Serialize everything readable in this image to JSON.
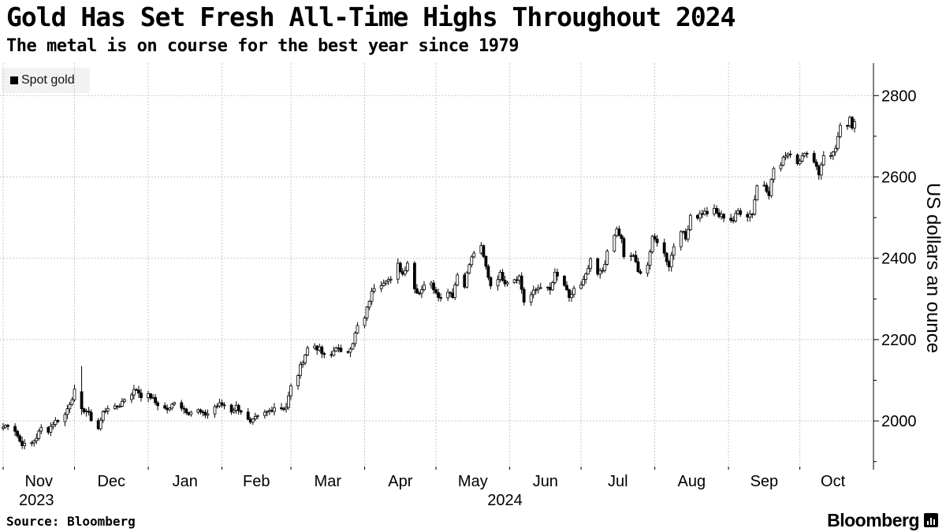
{
  "header": {
    "title": "Gold Has Set Fresh All-Time Highs Throughout 2024",
    "subtitle": "The metal is on course for the best year since 1979"
  },
  "footer": {
    "source": "Source: Bloomberg",
    "brand": "Bloomberg"
  },
  "chart_data": {
    "type": "candlestick",
    "legend": {
      "entries": [
        "Spot gold"
      ],
      "placement": "top-left"
    },
    "ylabel": "US dollars an ounce",
    "y_axis_side": "right",
    "ylim": [
      1880,
      2880
    ],
    "yticks": [
      2000,
      2200,
      2400,
      2600,
      2800
    ],
    "grid": true,
    "x_range": [
      "2023-11-01",
      "2024-10-24"
    ],
    "month_ticks": [
      {
        "label": "Nov",
        "date": "2023-11-01"
      },
      {
        "label": "Dec",
        "date": "2023-12-01"
      },
      {
        "label": "Jan",
        "date": "2024-01-01"
      },
      {
        "label": "Feb",
        "date": "2024-02-01"
      },
      {
        "label": "Mar",
        "date": "2024-03-01"
      },
      {
        "label": "Apr",
        "date": "2024-04-01"
      },
      {
        "label": "May",
        "date": "2024-05-01"
      },
      {
        "label": "Jun",
        "date": "2024-06-01"
      },
      {
        "label": "Jul",
        "date": "2024-07-01"
      },
      {
        "label": "Aug",
        "date": "2024-08-01"
      },
      {
        "label": "Sep",
        "date": "2024-09-01"
      },
      {
        "label": "Oct",
        "date": "2024-10-01"
      }
    ],
    "year_labels": [
      {
        "label": "2023",
        "date": "2023-11-15"
      },
      {
        "label": "2024",
        "date": "2024-05-30"
      }
    ],
    "candle_color_up": "#ffffff",
    "candle_color_down": "#000000",
    "close_series": [
      [
        "2023-11-01",
        1985
      ],
      [
        "2023-11-03",
        1992
      ],
      [
        "2023-11-06",
        1978
      ],
      [
        "2023-11-08",
        1950
      ],
      [
        "2023-11-10",
        1940
      ],
      [
        "2023-11-13",
        1945
      ],
      [
        "2023-11-15",
        1960
      ],
      [
        "2023-11-17",
        1982
      ],
      [
        "2023-11-20",
        1978
      ],
      [
        "2023-11-22",
        1995
      ],
      [
        "2023-11-24",
        2003
      ],
      [
        "2023-11-27",
        2015
      ],
      [
        "2023-11-29",
        2045
      ],
      [
        "2023-12-01",
        2072
      ],
      [
        "2023-12-04",
        2030
      ],
      [
        "2023-12-06",
        2025
      ],
      [
        "2023-12-08",
        2005
      ],
      [
        "2023-12-11",
        1982
      ],
      [
        "2023-12-13",
        2020
      ],
      [
        "2023-12-15",
        2035
      ],
      [
        "2023-12-18",
        2030
      ],
      [
        "2023-12-20",
        2040
      ],
      [
        "2023-12-22",
        2055
      ],
      [
        "2023-12-27",
        2078
      ],
      [
        "2023-12-29",
        2063
      ],
      [
        "2024-01-02",
        2060
      ],
      [
        "2024-01-04",
        2045
      ],
      [
        "2024-01-08",
        2030
      ],
      [
        "2024-01-10",
        2028
      ],
      [
        "2024-01-12",
        2050
      ],
      [
        "2024-01-16",
        2030
      ],
      [
        "2024-01-18",
        2022
      ],
      [
        "2024-01-22",
        2025
      ],
      [
        "2024-01-24",
        2015
      ],
      [
        "2024-01-26",
        2018
      ],
      [
        "2024-01-29",
        2035
      ],
      [
        "2024-01-31",
        2040
      ],
      [
        "2024-02-02",
        2040
      ],
      [
        "2024-02-05",
        2025
      ],
      [
        "2024-02-07",
        2035
      ],
      [
        "2024-02-09",
        2025
      ],
      [
        "2024-02-13",
        1992
      ],
      [
        "2024-02-15",
        2005
      ],
      [
        "2024-02-19",
        2018
      ],
      [
        "2024-02-21",
        2025
      ],
      [
        "2024-02-23",
        2035
      ],
      [
        "2024-02-26",
        2032
      ],
      [
        "2024-02-28",
        2035
      ],
      [
        "2024-03-01",
        2083
      ],
      [
        "2024-03-04",
        2115
      ],
      [
        "2024-03-06",
        2150
      ],
      [
        "2024-03-08",
        2178
      ],
      [
        "2024-03-11",
        2185
      ],
      [
        "2024-03-13",
        2175
      ],
      [
        "2024-03-15",
        2158
      ],
      [
        "2024-03-18",
        2160
      ],
      [
        "2024-03-20",
        2185
      ],
      [
        "2024-03-22",
        2165
      ],
      [
        "2024-03-25",
        2172
      ],
      [
        "2024-03-27",
        2195
      ],
      [
        "2024-03-29",
        2232
      ],
      [
        "2024-04-01",
        2251
      ],
      [
        "2024-04-03",
        2298
      ],
      [
        "2024-04-05",
        2330
      ],
      [
        "2024-04-08",
        2339
      ],
      [
        "2024-04-10",
        2350
      ],
      [
        "2024-04-12",
        2344
      ],
      [
        "2024-04-15",
        2383
      ],
      [
        "2024-04-17",
        2361
      ],
      [
        "2024-04-19",
        2391
      ],
      [
        "2024-04-22",
        2325
      ],
      [
        "2024-04-24",
        2316
      ],
      [
        "2024-04-26",
        2337
      ],
      [
        "2024-04-29",
        2335
      ],
      [
        "2024-05-01",
        2320
      ],
      [
        "2024-05-03",
        2301
      ],
      [
        "2024-05-06",
        2322
      ],
      [
        "2024-05-08",
        2309
      ],
      [
        "2024-05-10",
        2360
      ],
      [
        "2024-05-13",
        2336
      ],
      [
        "2024-05-15",
        2385
      ],
      [
        "2024-05-17",
        2415
      ],
      [
        "2024-05-20",
        2425
      ],
      [
        "2024-05-22",
        2378
      ],
      [
        "2024-05-24",
        2334
      ],
      [
        "2024-05-28",
        2360
      ],
      [
        "2024-05-30",
        2343
      ],
      [
        "2024-06-03",
        2350
      ],
      [
        "2024-06-05",
        2355
      ],
      [
        "2024-06-07",
        2294
      ],
      [
        "2024-06-10",
        2310
      ],
      [
        "2024-06-12",
        2322
      ],
      [
        "2024-06-14",
        2333
      ],
      [
        "2024-06-18",
        2320
      ],
      [
        "2024-06-20",
        2360
      ],
      [
        "2024-06-24",
        2334
      ],
      [
        "2024-06-26",
        2298
      ],
      [
        "2024-06-28",
        2326
      ],
      [
        "2024-07-01",
        2332
      ],
      [
        "2024-07-03",
        2356
      ],
      [
        "2024-07-05",
        2392
      ],
      [
        "2024-07-08",
        2359
      ],
      [
        "2024-07-10",
        2371
      ],
      [
        "2024-07-12",
        2411
      ],
      [
        "2024-07-16",
        2470
      ],
      [
        "2024-07-18",
        2445
      ],
      [
        "2024-07-19",
        2400
      ],
      [
        "2024-07-23",
        2408
      ],
      [
        "2024-07-25",
        2364
      ],
      [
        "2024-07-29",
        2385
      ],
      [
        "2024-07-31",
        2447
      ],
      [
        "2024-08-02",
        2443
      ],
      [
        "2024-08-05",
        2410
      ],
      [
        "2024-08-07",
        2383
      ],
      [
        "2024-08-09",
        2431
      ],
      [
        "2024-08-12",
        2472
      ],
      [
        "2024-08-14",
        2447
      ],
      [
        "2024-08-16",
        2507
      ],
      [
        "2024-08-19",
        2503
      ],
      [
        "2024-08-21",
        2512
      ],
      [
        "2024-08-23",
        2512
      ],
      [
        "2024-08-26",
        2517
      ],
      [
        "2024-08-28",
        2504
      ],
      [
        "2024-08-30",
        2503
      ],
      [
        "2024-09-03",
        2493
      ],
      [
        "2024-09-05",
        2516
      ],
      [
        "2024-09-09",
        2506
      ],
      [
        "2024-09-11",
        2512
      ],
      [
        "2024-09-13",
        2578
      ],
      [
        "2024-09-16",
        2582
      ],
      [
        "2024-09-18",
        2560
      ],
      [
        "2024-09-20",
        2621
      ],
      [
        "2024-09-23",
        2628
      ],
      [
        "2024-09-25",
        2657
      ],
      [
        "2024-09-27",
        2658
      ],
      [
        "2024-09-30",
        2634
      ],
      [
        "2024-10-02",
        2657
      ],
      [
        "2024-10-04",
        2653
      ],
      [
        "2024-10-07",
        2643
      ],
      [
        "2024-10-09",
        2608
      ],
      [
        "2024-10-11",
        2656
      ],
      [
        "2024-10-14",
        2649
      ],
      [
        "2024-10-16",
        2674
      ],
      [
        "2024-10-18",
        2721
      ],
      [
        "2024-10-21",
        2720
      ],
      [
        "2024-10-22",
        2748
      ],
      [
        "2024-10-23",
        2714
      ],
      [
        "2024-10-24",
        2736
      ]
    ],
    "highlights": [
      {
        "date": "2023-12-04",
        "high": 2135,
        "low": 2015,
        "open": 2072,
        "close": 2030
      }
    ]
  }
}
